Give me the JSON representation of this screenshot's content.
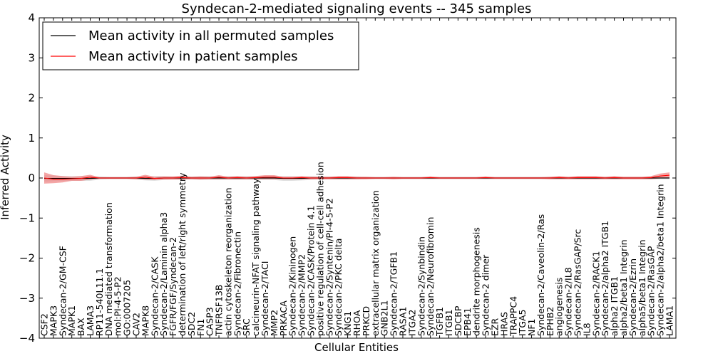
{
  "chart_data": {
    "type": "line",
    "title": "Syndecan-2-mediated signaling events -- 345 samples",
    "xlabel": "Cellular Entities",
    "ylabel": "Inferred Activity",
    "ylim": [
      -4,
      4
    ],
    "yticks": [
      -4,
      -3,
      -2,
      -1,
      0,
      1,
      2,
      3,
      4
    ],
    "grid": false,
    "legend_position": "top-left",
    "categories": [
      "CSF2",
      "MAPK3",
      "Syndecan-2/GM-CSF",
      "MAPK1",
      "BAX",
      "LAMA3",
      "RP11-540L11.1",
      "DNA mediated transformation",
      "mol:PI-4-5-P2",
      "GO:0007205",
      "CAV2",
      "MAPK8",
      "Syndecan-2/CASK",
      "Syndecan-2/Laminin alpha3",
      "FGFR/FGF/Syndecan-2",
      "determination of left/right symmetry",
      "SDC2",
      "FN1",
      "CASP3",
      "TNFRSF13B",
      "actin cytoskeleton reorganization",
      "Syndecan-2/Fibronectin",
      "SRC",
      "calcineurin-NFAT signaling pathway",
      "Syndecan-2/TACI",
      "MMP2",
      "PRKACA",
      "Syndecan-2/Kininogen",
      "Syndecan-2/MMP2",
      "Syndecan-2/CASK/Protein 4.1",
      "positive regulation of cell-cell adhesion",
      "Syndecan-2/Syntenin/PI-4-5-P2",
      "Syndecan-2/PKC delta",
      "KNG1",
      "RHOA",
      "PRKCD",
      "extracellular matrix organization",
      "GNB2L1",
      "Syndecan-2/TGFB1",
      "RASA1",
      "ITGA2",
      "Syndecan-2/Synbindin",
      "Syndecan-2/Neurofibromin",
      "TGFB1",
      "ITGB1",
      "SDCBP",
      "EPB41",
      "dendrite morphogenesis",
      "Syndecan-2 dimer",
      "EZR",
      "HRAS",
      "TRAPPC4",
      "ITGA5",
      "NF1",
      "Syndecan-2/Caveolin-2/Ras",
      "EPHB2",
      "angiogenesis",
      "Syndecan-2/IL8",
      "Syndecan-2/RasGAP/Src",
      "IL8",
      "Syndecan-2/RACK1",
      "Syndecan-2/alpha2 ITGB1",
      "alpha2 ITGB1",
      "alpha2/beta1 Integrin",
      "Syndecan-2/Ezrin",
      "alpha5/beta1 Integrin",
      "Syndecan-2/RasGAP",
      "Syndecan-2/alpha2/beta1 Integrin",
      "LAMA1"
    ],
    "series": [
      {
        "name": "Mean activity in all permuted samples",
        "color": "#000000",
        "band_color": "#c8c8c8",
        "values": [
          -0.01,
          -0.01,
          -0.01,
          -0.01,
          -0.01,
          -0.01,
          0,
          0,
          0,
          0,
          0,
          -0.01,
          -0.01,
          0,
          0,
          0,
          0,
          0,
          0,
          0,
          0,
          0,
          0,
          0,
          0,
          0,
          -0.01,
          -0.01,
          -0.01,
          0,
          0,
          0,
          0,
          0,
          0,
          0,
          0,
          0,
          0,
          0,
          0,
          0,
          0,
          0,
          0,
          0,
          0,
          0,
          0,
          0,
          0,
          0,
          0,
          0,
          0,
          0,
          0,
          0,
          0,
          0,
          0,
          0,
          0,
          0,
          0,
          0,
          0,
          0,
          0
        ],
        "spread": [
          0.08,
          0.07,
          0.06,
          0.06,
          0.06,
          0.06,
          0.04,
          0.03,
          0.03,
          0.03,
          0.04,
          0.05,
          0.06,
          0.05,
          0.04,
          0.04,
          0.04,
          0.05,
          0.05,
          0.05,
          0.05,
          0.05,
          0.05,
          0.05,
          0.05,
          0.05,
          0.06,
          0.06,
          0.05,
          0.05,
          0.04,
          0.04,
          0.04,
          0.04,
          0.04,
          0.03,
          0.03,
          0.03,
          0.03,
          0.03,
          0.03,
          0.03,
          0.03,
          0.03,
          0.03,
          0.03,
          0.03,
          0.03,
          0.03,
          0.03,
          0.03,
          0.03,
          0.03,
          0.03,
          0.03,
          0.03,
          0.03,
          0.03,
          0.03,
          0.03,
          0.03,
          0.03,
          0.03,
          0.03,
          0.03,
          0.03,
          0.03,
          0.03,
          0.03
        ]
      },
      {
        "name": "Mean activity in patient samples",
        "color": "#ff0000",
        "band_color": "#f08080",
        "values": [
          0,
          -0.03,
          -0.03,
          -0.02,
          -0.01,
          0.02,
          0,
          0,
          0,
          0,
          0,
          0.02,
          -0.01,
          0,
          0,
          0.01,
          0,
          0,
          0,
          0.02,
          0,
          0.01,
          0,
          0.01,
          0.02,
          0.02,
          0,
          0,
          0.01,
          0,
          0,
          0,
          0.01,
          0.01,
          0,
          0,
          0,
          0,
          0,
          0,
          0,
          0,
          0.01,
          0,
          0,
          0,
          0,
          0,
          0.01,
          0,
          0,
          0,
          0,
          0,
          0,
          0,
          0.01,
          0,
          0.01,
          0.01,
          0.01,
          0,
          0.01,
          0,
          0,
          0,
          0.01,
          0.05,
          0.07
        ],
        "spread": [
          0.14,
          0.1,
          0.08,
          0.05,
          0.06,
          0.06,
          0.02,
          0.02,
          0.02,
          0.02,
          0.03,
          0.06,
          0.04,
          0.04,
          0.04,
          0.05,
          0.03,
          0.04,
          0.03,
          0.05,
          0.03,
          0.04,
          0.03,
          0.04,
          0.05,
          0.05,
          0.03,
          0.03,
          0.04,
          0.03,
          0.03,
          0.03,
          0.04,
          0.04,
          0.03,
          0.03,
          0.02,
          0.02,
          0.03,
          0.02,
          0.02,
          0.02,
          0.03,
          0.02,
          0.02,
          0.02,
          0.02,
          0.02,
          0.03,
          0.02,
          0.02,
          0.02,
          0.02,
          0.02,
          0.02,
          0.03,
          0.04,
          0.03,
          0.04,
          0.04,
          0.04,
          0.03,
          0.04,
          0.03,
          0.03,
          0.03,
          0.04,
          0.06,
          0.07
        ]
      }
    ]
  }
}
